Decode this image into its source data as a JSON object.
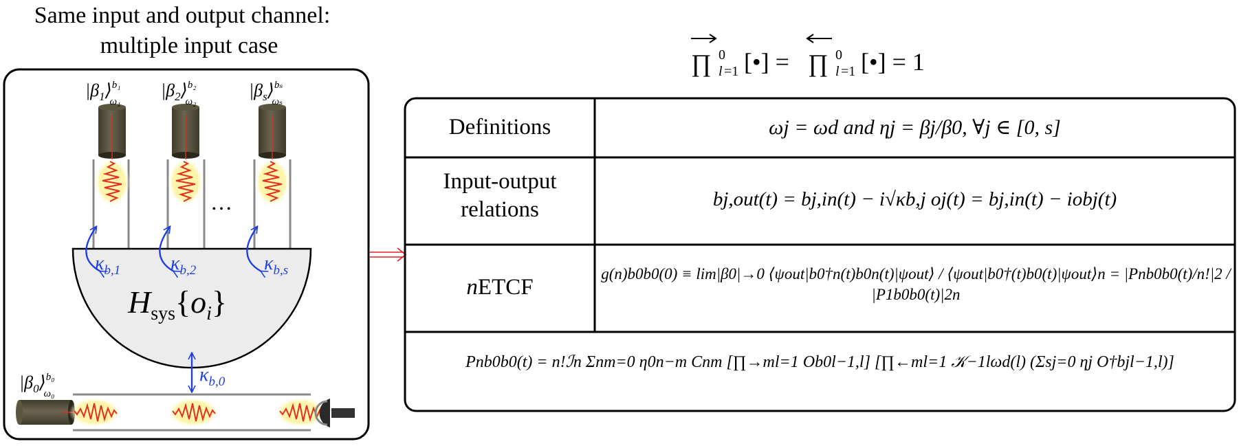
{
  "title": {
    "line1": "Same input and output channel:",
    "line2": "multiple input case"
  },
  "header_formula": "∏→⁰ₗ₌₁[•] = ∏←⁰ₗ₌₁[•] = 1",
  "system": {
    "hamiltonian": "Hsys{oi}",
    "ellipsis": "…",
    "inputs": [
      {
        "state": "|β1⟩ω1 b1",
        "coupling": "κb,1"
      },
      {
        "state": "|β2⟩ω2 b2",
        "coupling": "κb,2"
      },
      {
        "state": "|βs⟩ωs bs",
        "coupling": "κb,s"
      }
    ],
    "main_input": {
      "state": "|β0⟩ω0 b0",
      "coupling": "κb,0"
    }
  },
  "colors": {
    "coupling_blue": "#1f3fe0",
    "arrow_red": "#e02020",
    "cylinder": "#5b5640",
    "system_fill": "#ececec",
    "pulse_glow": "#fff3a0"
  },
  "table": {
    "rows": [
      {
        "label": "Definitions",
        "content": "ωj = ωd and ηj = βj/β0, ∀j ∈ [0, s]"
      },
      {
        "label_line1": "Input-output",
        "label_line2": "relations",
        "content": "bj,out(t) = bj,in(t) − i√κb,j oj(t) = bj,in(t) − iobj(t)"
      },
      {
        "label": "nETCF",
        "content": "g(n)b0b0(0) ≡ lim|β0|→0 ⟨ψout|b0†n(t)b0n(t)|ψout⟩ / ⟨ψout|b0†(t)b0(t)|ψout⟩n = |Pnb0b0(t)/n!|2 / |P1b0b0(t)|2n"
      },
      {
        "content": "Pnb0b0(t) = n!ℐn Σnm=0 η0n−m Cnm [∏→ml=1 Ob0l−1,l] [∏←ml=1 𝒦−1lωd(l) (Σsj=0 ηj O†bjl−1,l)]"
      }
    ]
  }
}
